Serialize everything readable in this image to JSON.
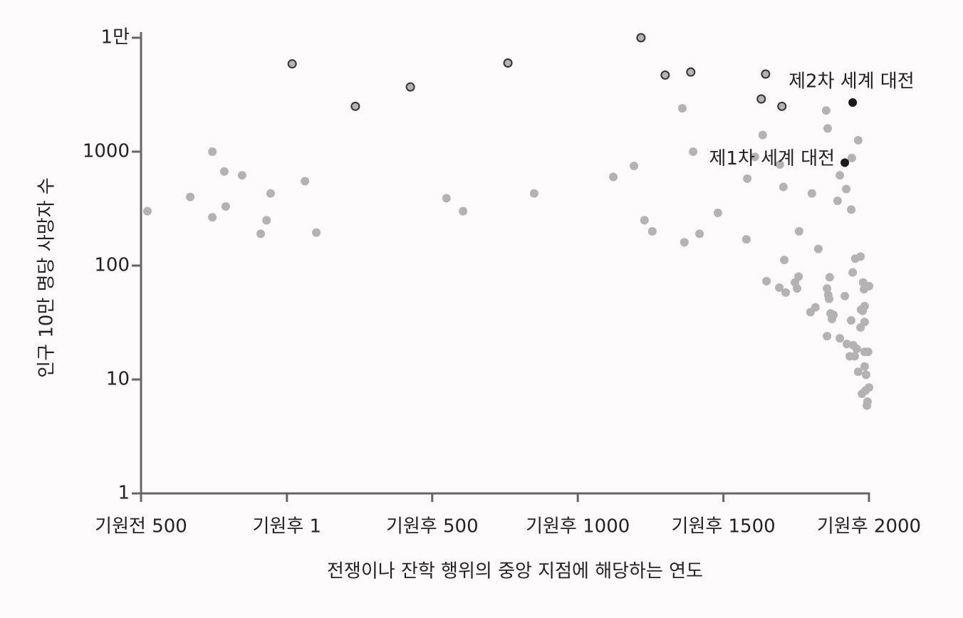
{
  "chart_data": {
    "type": "scatter",
    "xlabel": "전쟁이나 잔학 행위의 중앙 지점에 해당하는 연도",
    "ylabel": "인구 10만 명당 사망자 수",
    "xlim": [
      -500,
      2000
    ],
    "ylim": [
      1,
      10000
    ],
    "log_y": true,
    "xticks": [
      {
        "value": -500,
        "label": "기원전 500"
      },
      {
        "value": 1,
        "label": "기원후 1"
      },
      {
        "value": 500,
        "label": "기원후 500"
      },
      {
        "value": 1000,
        "label": "기원후 1000"
      },
      {
        "value": 1500,
        "label": "기원후 1500"
      },
      {
        "value": 2000,
        "label": "기원후 2000"
      }
    ],
    "yticks": [
      1,
      10,
      100,
      1000,
      {
        "value": 10000,
        "label": "1만"
      }
    ],
    "series": [
      {
        "color": "#b3b3b3",
        "x": [
          -478,
          -331,
          -255,
          -255,
          -214,
          -209,
          -153,
          -89,
          -69,
          -55,
          63,
          102,
          549,
          606,
          850,
          1122,
          1193,
          1229,
          1256,
          1366,
          1359,
          1396,
          1418,
          1481,
          1579,
          1582,
          1608,
          1635,
          1648,
          1692,
          1694,
          1706,
          1709,
          1714,
          1746,
          1753,
          1758,
          1760,
          1799,
          1816,
          1804,
          1826,
          1853,
          1858,
          1856,
          1860,
          1865,
          1863,
          1868,
          1873,
          1878,
          1856,
          1892,
          1900,
          1900,
          1917,
          1922,
          1924,
          1934,
          1939,
          1939,
          1941,
          1944,
          1946,
          1951,
          1953,
          1958,
          1963,
          1963,
          1971,
          1971,
          1973,
          1980,
          1983,
          1985,
          1985,
          1985,
          1985,
          1976,
          1988,
          1990,
          1993,
          1995,
          1997,
          2000,
          2000,
          1978
        ],
        "values": [
          300,
          400,
          1000,
          265,
          670,
          330,
          620,
          190,
          250,
          430,
          550,
          195,
          390,
          300,
          430,
          600,
          750,
          250,
          200,
          160,
          2400,
          1000,
          190,
          290,
          170,
          580,
          900,
          1400,
          73,
          64,
          770,
          490,
          112,
          58,
          71,
          63,
          80,
          200,
          39,
          43,
          430,
          140,
          2300,
          1600,
          63,
          55,
          79,
          51,
          38,
          34,
          37,
          24,
          370,
          620,
          23,
          54,
          470,
          20.5,
          16,
          310,
          33,
          880,
          87,
          20,
          16,
          115,
          18.6,
          1260,
          11.7,
          120,
          28.6,
          41,
          71,
          62,
          44,
          32,
          13,
          17.5,
          7.5,
          8,
          11,
          5.9,
          6.4,
          17.5,
          8.5,
          66,
          40
        ]
      },
      {
        "color": "#b3b3b3",
        "edgecolor": "#333333",
        "x": [
          19,
          236,
          425,
          760,
          1217,
          1300,
          1388,
          1630,
          1645,
          1701
        ],
        "values": [
          5900,
          2500,
          3700,
          6000,
          10000,
          4700,
          5000,
          2900,
          4800,
          2500
        ]
      },
      {
        "color": "#1a1a1a",
        "x": [
          1917,
          1944
        ],
        "values": [
          800,
          2700
        ],
        "labels": [
          "제1차 세계 대전",
          "제2차 세계 대전"
        ]
      }
    ]
  }
}
